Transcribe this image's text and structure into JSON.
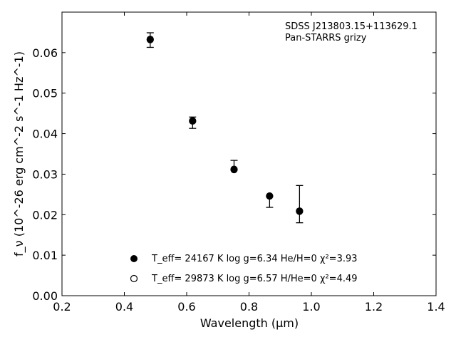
{
  "chart_data": {
    "type": "scatter",
    "xlabel": "Wavelength (μm)",
    "ylabel": "f_ν (10^-26 erg cm^-2 s^-1 Hz^-1)",
    "xlim": [
      0.2,
      1.4
    ],
    "ylim": [
      0.0,
      0.07
    ],
    "xticks": [
      0.2,
      0.4,
      0.6,
      0.8,
      1.0,
      1.2,
      1.4
    ],
    "xtick_labels": [
      "0.2",
      "0.4",
      "0.6",
      "0.8",
      "1.0",
      "1.2",
      "1.4"
    ],
    "yticks": [
      0.0,
      0.01,
      0.02,
      0.03,
      0.04,
      0.05,
      0.06
    ],
    "ytick_labels": [
      "0.00",
      "0.01",
      "0.02",
      "0.03",
      "0.04",
      "0.05",
      "0.06"
    ],
    "grid": false,
    "legend_position": "bottom-center",
    "annotation_lines": [
      "SDSS J213803.15+113629.1",
      "Pan-STARRS grizy"
    ],
    "observed": {
      "x": [
        0.483,
        0.619,
        0.752,
        0.866,
        0.962
      ],
      "y": [
        0.0631,
        0.0427,
        0.0317,
        0.0245,
        0.0226
      ],
      "yerr_low": [
        0.0018,
        0.0014,
        0.0005,
        0.0027,
        0.0046
      ],
      "yerr_high": [
        0.0018,
        0.0014,
        0.0017,
        0.0,
        0.0046
      ]
    },
    "series": [
      {
        "name": "T_eff= 24167 K  log g=6.34  He/H=0  χ²=3.93",
        "marker": "filled-circle",
        "x": [
          0.483,
          0.619,
          0.752,
          0.866,
          0.962
        ],
        "y": [
          0.0633,
          0.0432,
          0.0311,
          0.0246,
          0.0208
        ]
      },
      {
        "name": "T_eff= 29873 K  log g=6.57  H/He=0  χ²=4.49",
        "marker": "open-circle",
        "x": [
          0.483,
          0.619,
          0.752,
          0.866,
          0.962
        ],
        "y": [
          0.0632,
          0.0431,
          0.0312,
          0.0246,
          0.0209
        ]
      }
    ]
  }
}
